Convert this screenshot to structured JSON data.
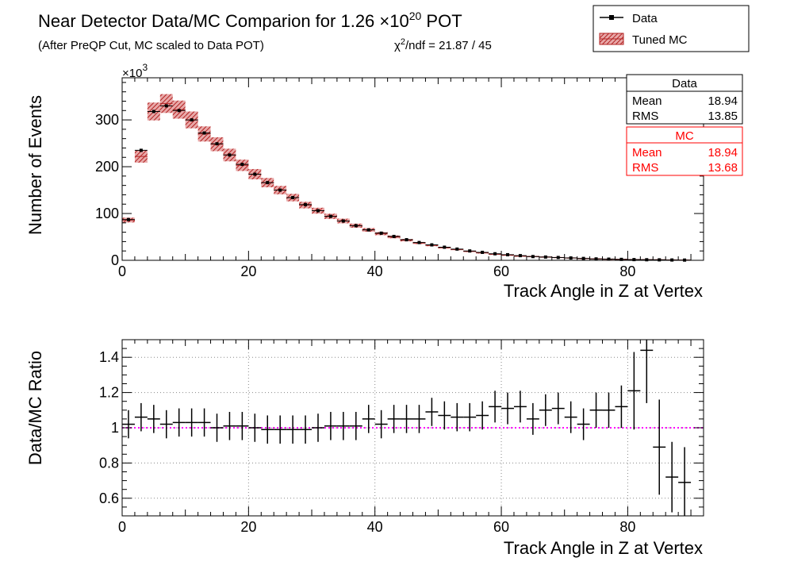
{
  "title": {
    "main_prefix": "Near Detector Data/MC Comparion for 1.26 ×10",
    "main_exp": "20",
    "main_suffix": " POT",
    "subtitle": "(After PreQP Cut, MC scaled to Data POT)",
    "chi2_prefix": "χ",
    "chi2_exp": "2",
    "chi2_suffix": "/ndf = 21.87 / 45"
  },
  "legend": {
    "entries": [
      {
        "label": "Data",
        "style": "marker-line",
        "color": "#000000"
      },
      {
        "label": "Tuned MC",
        "style": "hatched-band",
        "color": "#b22222"
      }
    ]
  },
  "stats": {
    "data": {
      "title": "Data",
      "rows": [
        {
          "label": "Mean",
          "value": "18.94"
        },
        {
          "label": "RMS",
          "value": "13.85"
        }
      ],
      "color": "#000000"
    },
    "mc": {
      "title": "MC",
      "rows": [
        {
          "label": "Mean",
          "value": "18.94"
        },
        {
          "label": "RMS",
          "value": "13.68"
        }
      ],
      "color": "#ff0000"
    }
  },
  "chart_data": [
    {
      "type": "bar",
      "name": "distribution",
      "xlabel": "Track Angle in Z at Vertex",
      "ylabel": "Number of Events",
      "y_multiplier_prefix": "×10",
      "y_multiplier_exp": "3",
      "xlim": [
        0,
        92
      ],
      "ylim": [
        0,
        390
      ],
      "xticks": [
        0,
        20,
        40,
        60,
        80
      ],
      "yticks": [
        0,
        100,
        200,
        300
      ],
      "bin_width": 2,
      "x": [
        1,
        3,
        5,
        7,
        9,
        11,
        13,
        15,
        17,
        19,
        21,
        23,
        25,
        27,
        29,
        31,
        33,
        35,
        37,
        39,
        41,
        43,
        45,
        47,
        49,
        51,
        53,
        55,
        57,
        59,
        61,
        63,
        65,
        67,
        69,
        71,
        73,
        75,
        77,
        79,
        81,
        83,
        85,
        87,
        89
      ],
      "series": [
        {
          "name": "Data",
          "values": [
            87,
            235,
            318,
            330,
            320,
            300,
            272,
            249,
            225,
            205,
            184,
            166,
            150,
            134,
            119,
            106,
            94,
            84,
            74,
            65,
            58,
            51,
            44,
            38,
            33,
            28,
            24,
            20,
            17,
            14,
            12,
            10,
            8,
            7,
            6,
            5,
            4,
            3,
            2.5,
            2,
            1.5,
            1.2,
            1,
            0.7,
            0.5
          ]
        },
        {
          "name": "Tuned MC",
          "values": [
            86,
            222,
            318,
            335,
            322,
            300,
            270,
            248,
            225,
            203,
            184,
            166,
            150,
            134,
            118,
            106,
            94,
            84,
            74,
            65,
            57,
            50,
            43,
            37,
            32,
            27,
            23,
            19,
            16,
            13,
            11,
            9,
            8,
            7,
            6,
            5,
            4,
            3,
            2.5,
            2,
            1.5,
            1.2,
            1,
            0.7,
            0.5
          ],
          "band_halfwidth_frac": 0.06
        }
      ]
    },
    {
      "type": "scatter",
      "name": "ratio",
      "xlabel": "Track Angle in Z at Vertex",
      "ylabel": "Data/MC Ratio",
      "xlim": [
        0,
        92
      ],
      "ylim": [
        0.5,
        1.5
      ],
      "xticks": [
        0,
        20,
        40,
        60,
        80
      ],
      "yticks": [
        0.6,
        0.8,
        1,
        1.2,
        1.4
      ],
      "grid": true,
      "reference_line": 1,
      "reference_color": "#ff00ff",
      "x": [
        1,
        3,
        5,
        7,
        9,
        11,
        13,
        15,
        17,
        19,
        21,
        23,
        25,
        27,
        29,
        31,
        33,
        35,
        37,
        39,
        41,
        43,
        45,
        47,
        49,
        51,
        53,
        55,
        57,
        59,
        61,
        63,
        65,
        67,
        69,
        71,
        73,
        75,
        77,
        79,
        81,
        83,
        85,
        87,
        89
      ],
      "y": [
        1.02,
        1.06,
        1.05,
        1.02,
        1.03,
        1.03,
        1.03,
        1.0,
        1.01,
        1.01,
        1.0,
        0.99,
        0.99,
        0.99,
        0.99,
        1.0,
        1.01,
        1.01,
        1.01,
        1.05,
        1.02,
        1.05,
        1.05,
        1.05,
        1.09,
        1.07,
        1.06,
        1.06,
        1.07,
        1.12,
        1.11,
        1.12,
        1.05,
        1.1,
        1.11,
        1.06,
        1.02,
        1.1,
        1.1,
        1.12,
        1.21,
        1.44,
        0.89,
        0.72,
        0.69
      ],
      "yerr": [
        0.08,
        0.08,
        0.08,
        0.08,
        0.08,
        0.08,
        0.08,
        0.08,
        0.08,
        0.08,
        0.08,
        0.08,
        0.08,
        0.08,
        0.08,
        0.08,
        0.08,
        0.08,
        0.08,
        0.08,
        0.08,
        0.08,
        0.08,
        0.08,
        0.08,
        0.08,
        0.08,
        0.08,
        0.08,
        0.09,
        0.09,
        0.09,
        0.09,
        0.09,
        0.09,
        0.09,
        0.09,
        0.1,
        0.1,
        0.12,
        0.22,
        0.3,
        0.27,
        0.2,
        0.2
      ]
    }
  ]
}
